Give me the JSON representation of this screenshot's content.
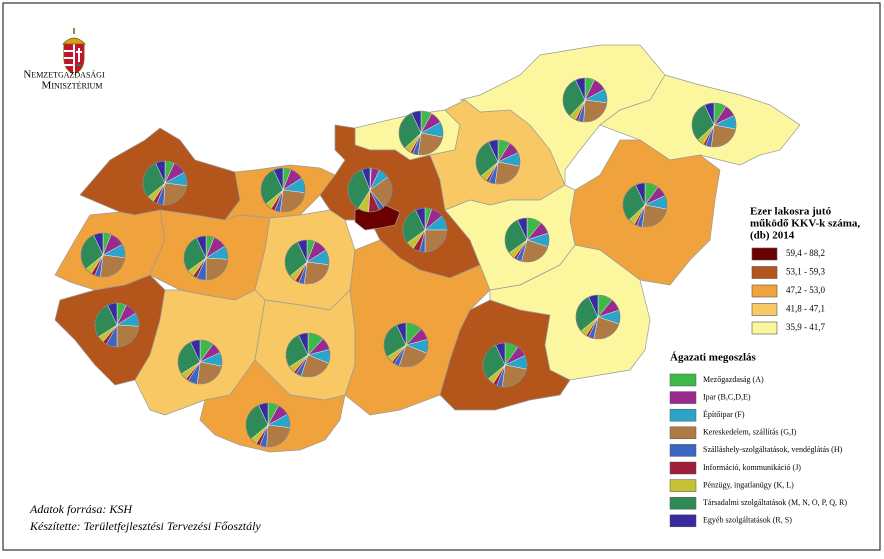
{
  "logo": [
    "Nemzetgazdasági",
    "Minisztérium"
  ],
  "choropleth_legend": {
    "title": [
      "Ezer lakosra jutó",
      "működő KKV-k száma,",
      "(db) 2014"
    ],
    "classes": [
      {
        "label": "59,4 - 88,2",
        "color": "#6b0000"
      },
      {
        "label": "53,1 - 59,3",
        "color": "#b4561c"
      },
      {
        "label": "47,2 - 53,0",
        "color": "#f0a23c"
      },
      {
        "label": "41,8 - 47,1",
        "color": "#f8c865"
      },
      {
        "label": "35,9 - 41,7",
        "color": "#fcf69e"
      }
    ]
  },
  "sector_legend": {
    "title": "Ágazati megoszlás",
    "items": [
      {
        "label": "Mezőgazdaság (A)",
        "color": "#3fb84a"
      },
      {
        "label": "Ipar (B,C,D,E)",
        "color": "#9b2a8f"
      },
      {
        "label": "Építőipar (F)",
        "color": "#2aa4c8"
      },
      {
        "label": "Kereskedelem, szállítás (G,I)",
        "color": "#b07a45"
      },
      {
        "label": "Szálláshely-szolgáltatások, vendéglátás (H)",
        "color": "#3a66c4"
      },
      {
        "label": "Információ, kommunikáció (J)",
        "color": "#9e1f3a"
      },
      {
        "label": "Pénzügy, ingatlanügy (K, L)",
        "color": "#c4c234"
      },
      {
        "label": "Társadalmi szolgáltatások (M, N, O, P, Q, R)",
        "color": "#2e8b57"
      },
      {
        "label": "Egyéb szolgáltatások (R, S)",
        "color": "#3a2aa0"
      }
    ]
  },
  "regions": [
    {
      "class": 1,
      "shares": [
        7,
        10,
        10,
        24,
        5,
        3,
        5,
        29,
        7
      ]
    },
    {
      "class": 2,
      "shares": [
        6,
        11,
        10,
        25,
        4,
        3,
        5,
        29,
        7
      ]
    },
    {
      "class": 2,
      "shares": [
        6,
        10,
        11,
        25,
        4,
        3,
        5,
        29,
        7
      ]
    },
    {
      "class": 2,
      "shares": [
        6,
        10,
        10,
        24,
        7,
        3,
        5,
        28,
        7
      ]
    },
    {
      "class": 1,
      "shares": [
        7,
        9,
        10,
        24,
        8,
        3,
        5,
        27,
        7
      ]
    },
    {
      "class": 3,
      "shares": [
        6,
        10,
        11,
        25,
        4,
        3,
        5,
        29,
        7
      ]
    },
    {
      "class": 3,
      "shares": [
        10,
        8,
        10,
        24,
        7,
        2,
        5,
        27,
        7
      ]
    },
    {
      "class": 3,
      "shares": [
        12,
        9,
        10,
        24,
        4,
        2,
        5,
        27,
        7
      ]
    },
    {
      "class": 2,
      "shares": [
        8,
        9,
        10,
        24,
        5,
        3,
        5,
        29,
        7
      ]
    },
    {
      "class": 4,
      "shares": [
        8,
        9,
        11,
        24,
        4,
        2,
        5,
        30,
        7
      ]
    },
    {
      "class": 1,
      "shares": [
        5,
        9,
        11,
        25,
        4,
        5,
        6,
        28,
        7
      ]
    },
    {
      "class": 0,
      "shares": [
        1,
        6,
        8,
        24,
        4,
        8,
        8,
        35,
        6
      ]
    },
    {
      "class": 2,
      "shares": [
        12,
        9,
        10,
        24,
        4,
        2,
        5,
        27,
        7
      ]
    },
    {
      "class": 1,
      "shares": [
        10,
        8,
        10,
        24,
        4,
        3,
        5,
        29,
        7
      ]
    },
    {
      "class": 3,
      "shares": [
        9,
        9,
        10,
        24,
        5,
        2,
        5,
        29,
        7
      ]
    },
    {
      "class": 4,
      "shares": [
        7,
        10,
        10,
        24,
        4,
        2,
        5,
        31,
        7
      ]
    },
    {
      "class": 4,
      "shares": [
        9,
        9,
        10,
        24,
        4,
        2,
        5,
        30,
        7
      ]
    },
    {
      "class": 4,
      "shares": [
        11,
        9,
        10,
        24,
        4,
        2,
        5,
        28,
        7
      ]
    },
    {
      "class": 2,
      "shares": [
        10,
        8,
        10,
        24,
        4,
        2,
        5,
        30,
        7
      ]
    },
    {
      "class": 4,
      "shares": [
        11,
        9,
        10,
        23,
        4,
        2,
        5,
        29,
        7
      ]
    }
  ],
  "footer": [
    "Adatok forrása: KSH",
    "Készítette: Területfejlesztési Tervezési Főosztály"
  ]
}
